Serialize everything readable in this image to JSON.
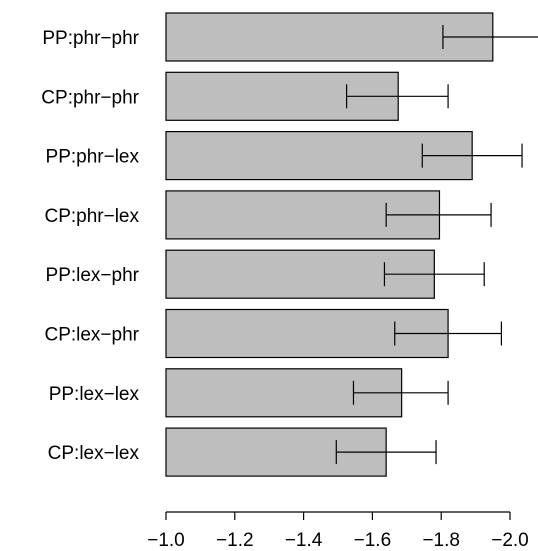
{
  "chart_data": {
    "type": "bar",
    "orientation": "horizontal",
    "categories": [
      "PP:phr−phr",
      "CP:phr−phr",
      "PP:phr−lex",
      "CP:phr−lex",
      "PP:lex−phr",
      "CP:lex−phr",
      "PP:lex−lex",
      "CP:lex−lex"
    ],
    "values": [
      -1.95,
      -1.675,
      -1.89,
      -1.795,
      -1.78,
      -1.82,
      -1.685,
      -1.64
    ],
    "error_low": [
      -1.805,
      -1.525,
      -1.745,
      -1.64,
      -1.635,
      -1.665,
      -1.545,
      -1.495
    ],
    "error_high": [
      -2.095,
      -1.82,
      -2.035,
      -1.945,
      -1.925,
      -1.975,
      -1.82,
      -1.785
    ],
    "xlim": [
      -1.0,
      -2.0
    ],
    "x_ticks": [
      -1.0,
      -1.2,
      -1.4,
      -1.6,
      -1.8,
      -2.0
    ],
    "x_tick_labels": [
      "−1.0",
      "−1.2",
      "−1.4",
      "−1.6",
      "−1.8",
      "−2.0"
    ],
    "bar_color": "#bebebe",
    "edge_color": "#000000",
    "grid": false,
    "legend": "none",
    "title": "",
    "xlabel": "",
    "ylabel": ""
  }
}
